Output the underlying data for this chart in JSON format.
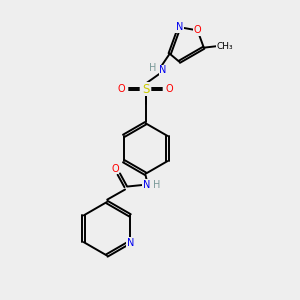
{
  "bg_color": "#eeeeee",
  "bond_color": "#000000",
  "colors": {
    "N": "#0000ee",
    "O": "#ff0000",
    "S": "#cccc00",
    "C": "#000000",
    "H": "#7a9a9a"
  }
}
